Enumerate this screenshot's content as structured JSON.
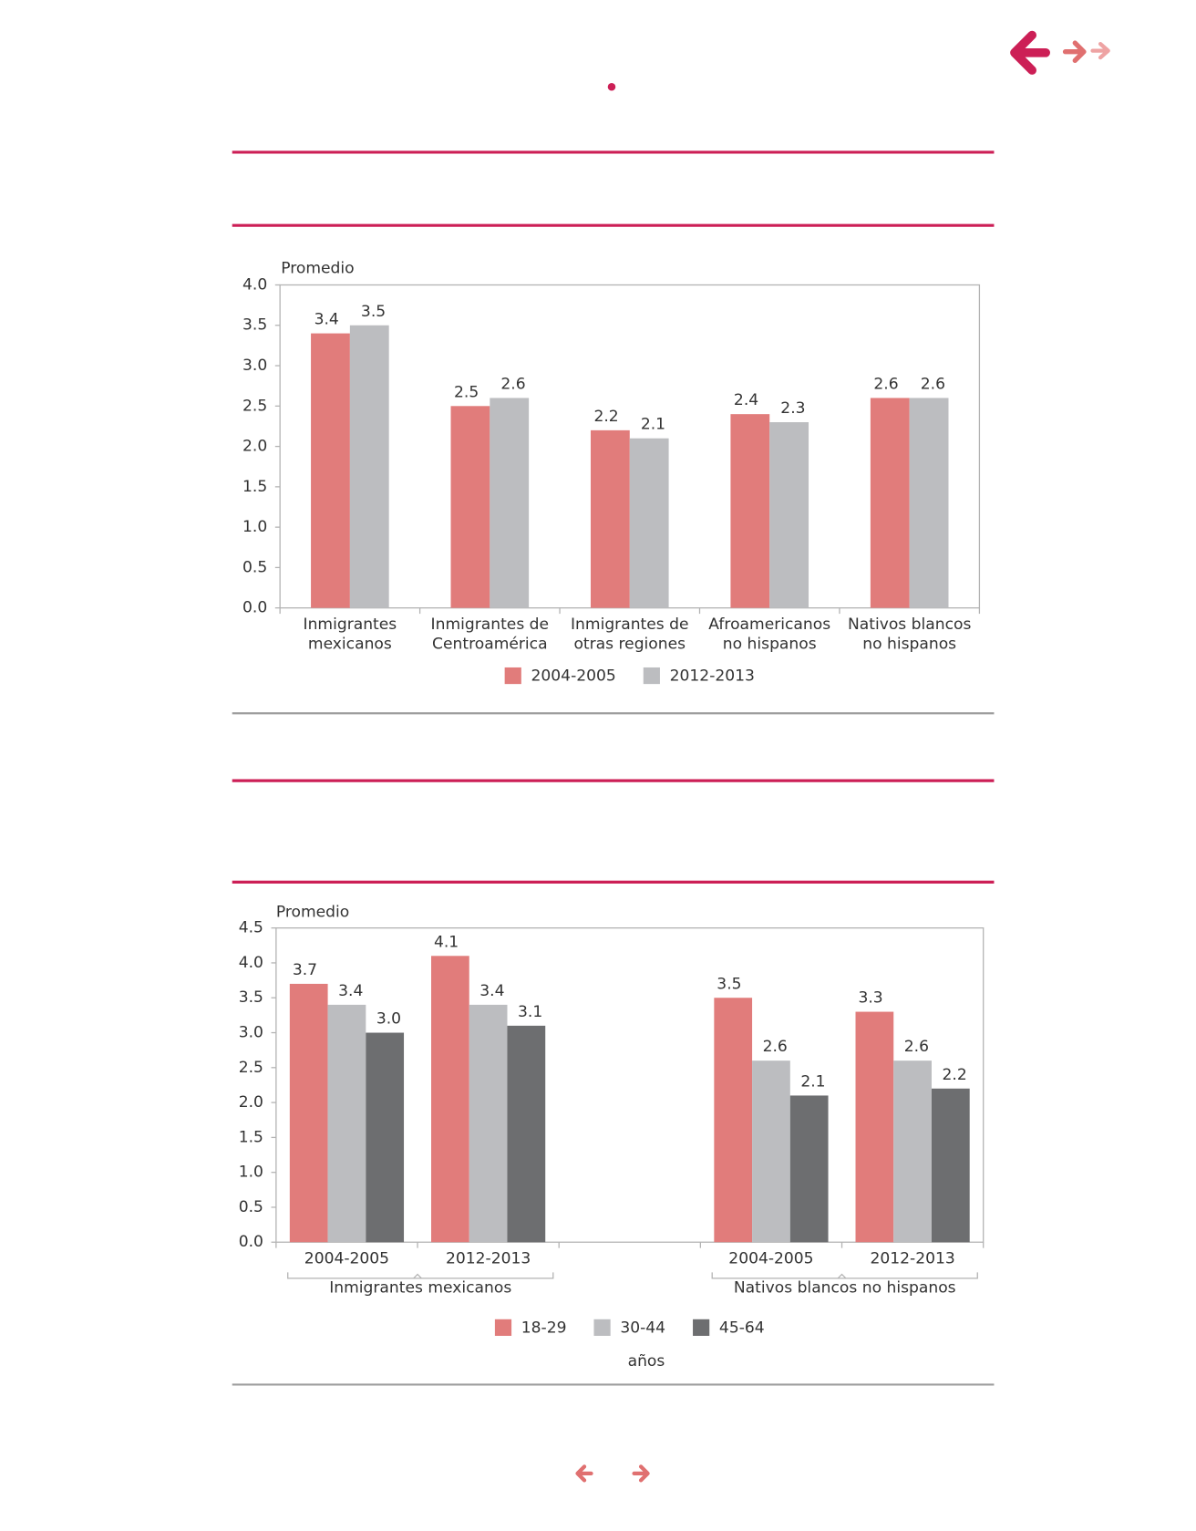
{
  "chart_data": [
    {
      "type": "bar",
      "y_label": "Promedio",
      "categories": [
        "Inmigrantes mexicanos",
        "Inmigrantes de Centroamérica",
        "Inmigrantes de otras regiones",
        "Afroamericanos no hispanos",
        "Nativos blancos no hispanos"
      ],
      "series": [
        {
          "name": "2004-2005",
          "color": "#e17c7b",
          "values": [
            3.4,
            2.5,
            2.2,
            2.4,
            2.6
          ]
        },
        {
          "name": "2012-2013",
          "color": "#bcbdc0",
          "values": [
            3.5,
            2.6,
            2.1,
            2.3,
            2.6
          ]
        }
      ],
      "ylim": [
        0,
        4
      ],
      "yticks": [
        {
          "value": 0,
          "label": "0.0"
        },
        {
          "value": 0.5,
          "label": "0.5"
        },
        {
          "value": 1,
          "label": "1.0"
        },
        {
          "value": 1.5,
          "label": "1.5"
        },
        {
          "value": 2,
          "label": "2.0"
        },
        {
          "value": 2.5,
          "label": "2.5"
        },
        {
          "value": 3,
          "label": "3.0"
        },
        {
          "value": 3.5,
          "label": "3.5"
        },
        {
          "value": 4,
          "label": "4.0"
        }
      ],
      "grid": false,
      "legend": "bottom"
    },
    {
      "type": "bar",
      "y_label": "Promedio",
      "categories": [
        "2004-2005",
        "2012-2013",
        null,
        "2004-2005",
        "2012-2013"
      ],
      "groups": [
        "Inmigrantes mexicanos",
        "Nativos blancos no hispanos"
      ],
      "series": [
        {
          "name": "18-29",
          "color": "#e17c7b",
          "values": [
            3.7,
            4.1,
            null,
            3.5,
            3.3
          ]
        },
        {
          "name": "30-44",
          "color": "#bcbdc0",
          "values": [
            3.4,
            3.4,
            null,
            2.6,
            2.6
          ]
        },
        {
          "name": "45-64",
          "color": "#6d6e70",
          "values": [
            3.0,
            3.1,
            null,
            2.1,
            2.2
          ],
          "value_labels": [
            "3.0",
            "3.1",
            null,
            "2.1",
            "2.2"
          ]
        }
      ],
      "ylim": [
        0,
        4.5
      ],
      "yticks": [
        {
          "value": 0,
          "label": "0.0"
        },
        {
          "value": 0.5,
          "label": "0.5"
        },
        {
          "value": 1,
          "label": "1.0"
        },
        {
          "value": 1.5,
          "label": "1.5"
        },
        {
          "value": 2,
          "label": "2.0"
        },
        {
          "value": 2.5,
          "label": "2.5"
        },
        {
          "value": 3,
          "label": "3.0"
        },
        {
          "value": 3.5,
          "label": "3.5"
        },
        {
          "value": 4,
          "label": "4.0"
        },
        {
          "value": 4.5,
          "label": "4.5"
        }
      ],
      "legend_note": "años",
      "grid": false,
      "legend": "bottom"
    }
  ]
}
